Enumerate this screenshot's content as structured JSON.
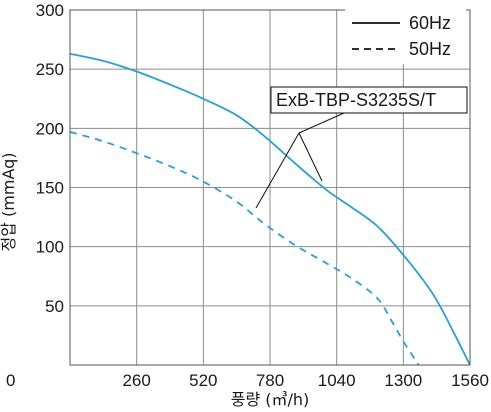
{
  "chart_data": {
    "type": "line",
    "xlabel": "풍량 (㎥/h)",
    "ylabel": "정압 (mmAq)",
    "xlim": [
      0,
      1560
    ],
    "ylim": [
      0,
      300
    ],
    "x_ticks": [
      "0",
      "260",
      "520",
      "780",
      "1040",
      "1300",
      "1560"
    ],
    "y_ticks": [
      "0",
      "50",
      "100",
      "150",
      "200",
      "250",
      "300"
    ],
    "grid": true,
    "legend_position": "top-right",
    "annotation": "ExB-TBP-S3235S/T",
    "series": [
      {
        "name": "60Hz",
        "style": "solid",
        "color": "#2a9fd6",
        "x": [
          0,
          130,
          260,
          390,
          520,
          650,
          760,
          880,
          1000,
          1100,
          1200,
          1300,
          1400,
          1450,
          1500,
          1560
        ],
        "y": [
          263,
          257,
          248,
          237,
          225,
          211,
          193,
          170,
          148,
          133,
          117,
          93,
          65,
          47,
          26,
          0
        ]
      },
      {
        "name": "50Hz",
        "style": "dashed",
        "color": "#2a9fd6",
        "x": [
          0,
          130,
          260,
          390,
          520,
          650,
          760,
          880,
          1000,
          1100,
          1200,
          1260,
          1300,
          1360
        ],
        "y": [
          197,
          189,
          179,
          168,
          155,
          138,
          119,
          101,
          86,
          73,
          56,
          35,
          20,
          0
        ]
      }
    ]
  }
}
